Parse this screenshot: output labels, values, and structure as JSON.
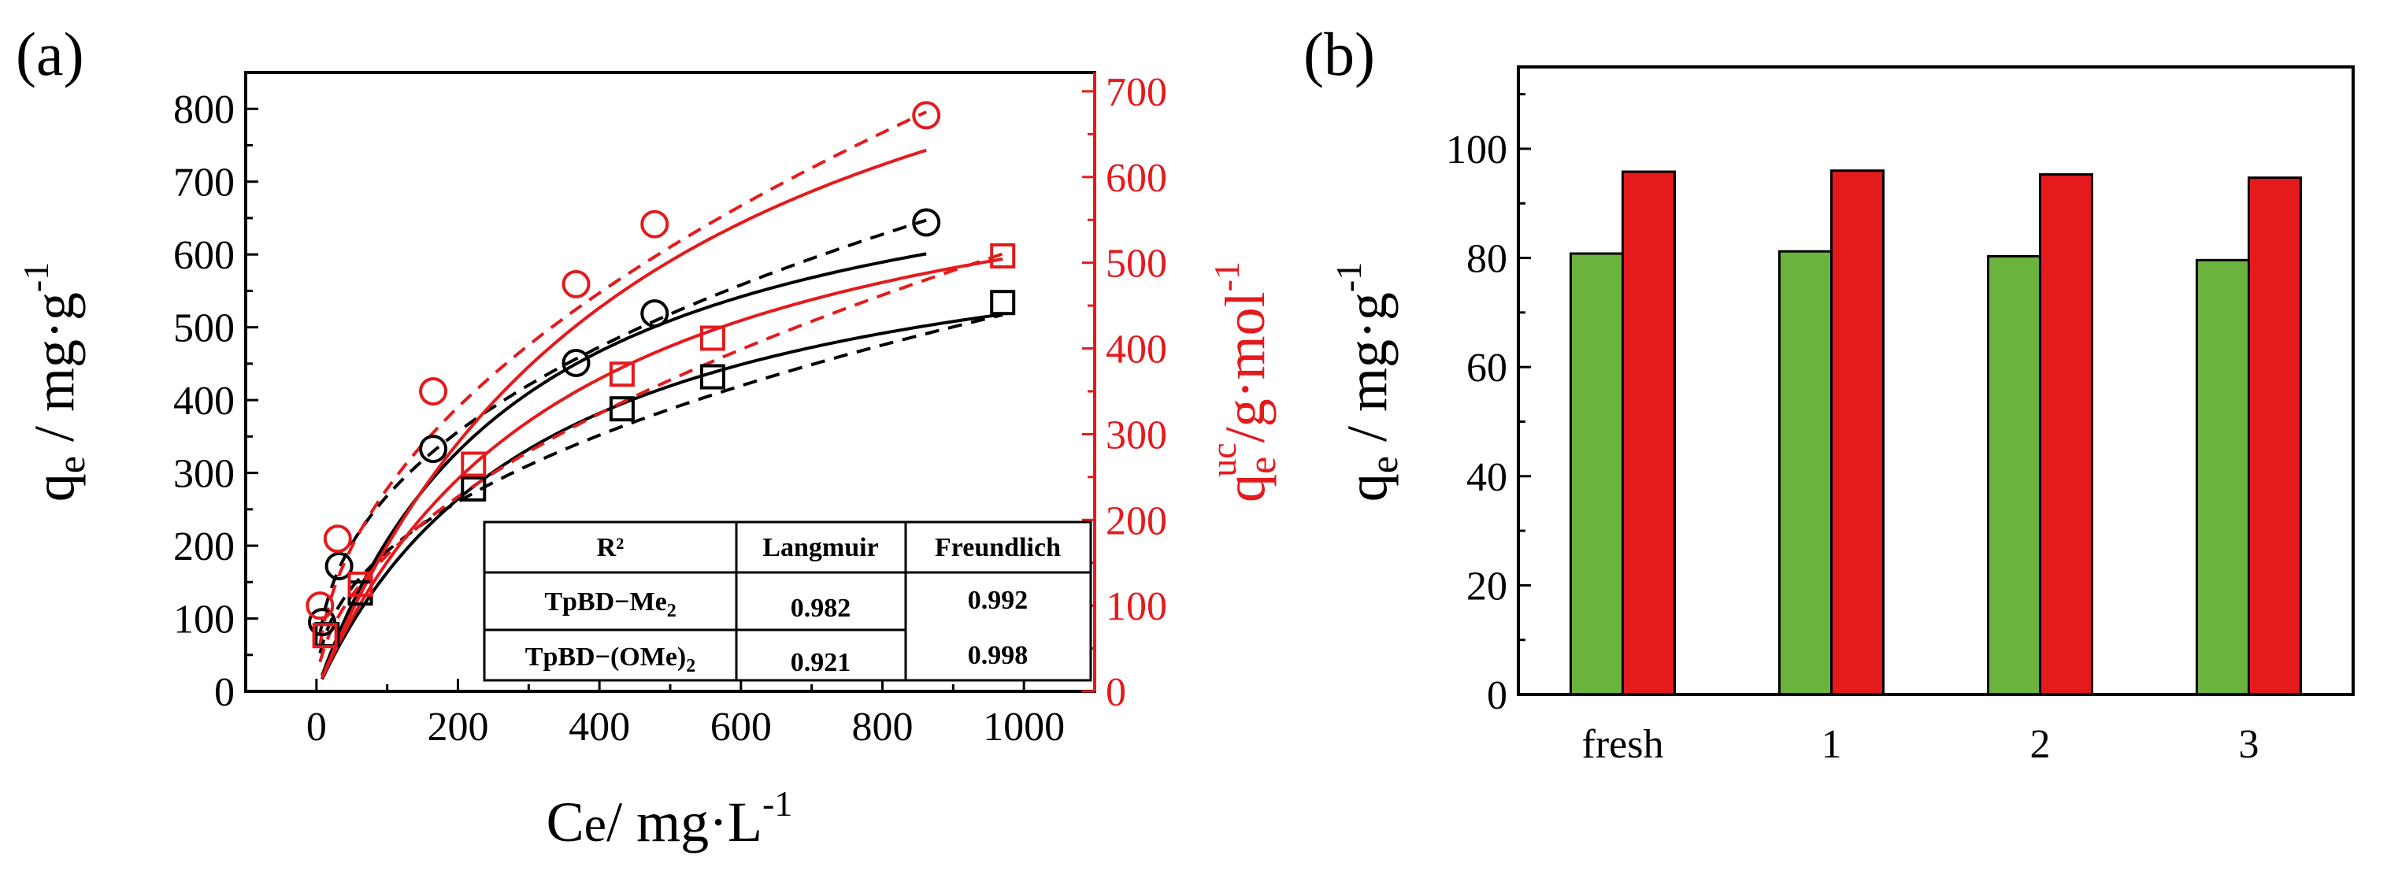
{
  "panels": {
    "a_label": "(a)",
    "b_label": "(b)"
  },
  "colors": {
    "black": "#000000",
    "red": "#e41a1c",
    "green": "#6ab43e",
    "bar_red": "#e41a1c"
  },
  "chart_data": [
    {
      "type": "scatter",
      "panel": "a",
      "xlabel": {
        "main": "C",
        "sub": "e",
        "unit": "/ mg·L",
        "sup": "-1"
      },
      "ylabel_left": {
        "main": "q",
        "sub": "e",
        "unit": " / mg·g",
        "sup": "-1"
      },
      "ylabel_right": {
        "main": "q",
        "sub": "e",
        "sup": "uc",
        "unit": "/g·mol",
        "sup2": "-1"
      },
      "xlim": [
        -100,
        1100
      ],
      "ylim_left": [
        0,
        850
      ],
      "ylim_right": [
        0,
        722
      ],
      "xticks": [
        0,
        200,
        400,
        600,
        800,
        1000
      ],
      "yticks_left": [
        0,
        100,
        200,
        300,
        400,
        500,
        600,
        700,
        800
      ],
      "yticks_right": [
        0,
        100,
        200,
        300,
        400,
        500,
        600,
        700
      ],
      "xtick_labels": [
        "0",
        "200",
        "400",
        "600",
        "800",
        "1000"
      ],
      "ytick_left_labels": [
        "0",
        "100",
        "200",
        "300",
        "400",
        "500",
        "600",
        "700",
        "800"
      ],
      "ytick_right_labels": [
        "0",
        "100",
        "200",
        "300",
        "400",
        "500",
        "600",
        "700"
      ],
      "series": [
        {
          "axis": "left",
          "color": "black",
          "marker": "circle",
          "x": [
            8,
            32,
            165,
            367,
            478,
            862
          ],
          "y": [
            95,
            172,
            333,
            451,
            519,
            644
          ],
          "langmuir": {
            "qmax": 800,
            "kl": 0.0035,
            "xmax": 862
          },
          "freundlich": {
            "kf": 41,
            "n": 2.45,
            "xmax": 862
          }
        },
        {
          "axis": "left",
          "color": "black",
          "marker": "square",
          "x": [
            15,
            62,
            222,
            432,
            560,
            970
          ],
          "y": [
            78,
            135,
            278,
            388,
            432,
            534
          ],
          "langmuir": {
            "qmax": 690,
            "kl": 0.0031,
            "xmax": 970
          },
          "freundlich": {
            "kf": 26,
            "n": 2.3,
            "xmax": 970
          }
        },
        {
          "axis": "right",
          "color": "red",
          "marker": "circle",
          "x": [
            5,
            30,
            165,
            367,
            478,
            862
          ],
          "y": [
            100,
            178,
            350,
            475,
            545,
            672
          ],
          "langmuir": {
            "qmax": 980,
            "kl": 0.0021,
            "xmax": 862
          },
          "freundlich": {
            "kf": 25,
            "n": 2.05,
            "xmax": 862
          }
        },
        {
          "axis": "right",
          "color": "red",
          "marker": "square",
          "x": [
            12,
            62,
            222,
            432,
            560,
            970
          ],
          "y": [
            65,
            125,
            265,
            370,
            412,
            508
          ],
          "langmuir": {
            "qmax": 690,
            "kl": 0.0028,
            "xmax": 970
          },
          "freundlich": {
            "kf": 15,
            "n": 1.95,
            "xmax": 970
          }
        }
      ],
      "table": {
        "headers": [
          "R²",
          "Langmuir",
          "Freundlich"
        ],
        "rows": [
          {
            "name": "TpBD−Me",
            "sub": "2",
            "langmuir": "0.982",
            "freundlich": "0.992"
          },
          {
            "name": "TpBD−(OMe)",
            "sub": "2",
            "langmuir": "0.921",
            "freundlich": "0.998"
          }
        ]
      }
    },
    {
      "type": "bar",
      "panel": "b",
      "ylabel": {
        "main": "q",
        "sub": "e",
        "unit": " / mg·g",
        "sup": "-1"
      },
      "ylim": [
        0,
        115
      ],
      "yticks": [
        0,
        20,
        40,
        60,
        80,
        100
      ],
      "ytick_labels": [
        "0",
        "20",
        "40",
        "60",
        "80",
        "100"
      ],
      "categories": [
        "fresh",
        "1",
        "2",
        "3"
      ],
      "series": [
        {
          "color": "green",
          "values": [
            80.8,
            81.2,
            80.3,
            79.6
          ]
        },
        {
          "color": "bar_red",
          "values": [
            95.8,
            96.0,
            95.3,
            94.7
          ]
        }
      ]
    }
  ]
}
